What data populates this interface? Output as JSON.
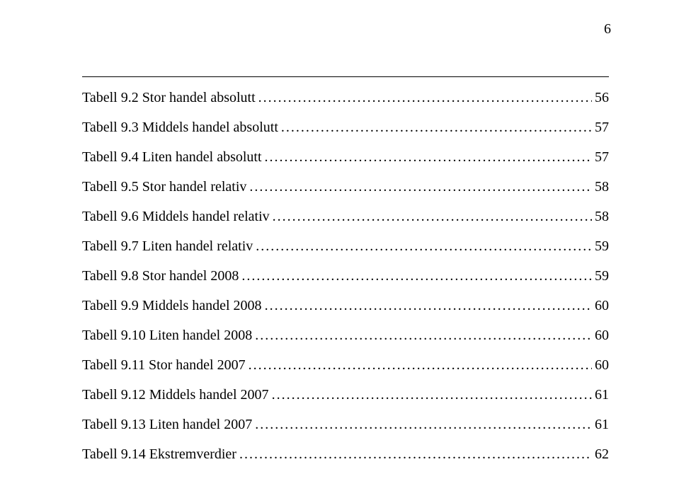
{
  "page_number": "6",
  "toc": [
    {
      "label": "Tabell 9.2 Stor handel absolutt",
      "page": "56"
    },
    {
      "label": "Tabell 9.3 Middels handel absolutt",
      "page": "57"
    },
    {
      "label": "Tabell 9.4 Liten handel absolutt",
      "page": "57"
    },
    {
      "label": "Tabell 9.5 Stor handel relativ",
      "page": "58"
    },
    {
      "label": "Tabell 9.6 Middels handel relativ",
      "page": "58"
    },
    {
      "label": "Tabell 9.7 Liten handel relativ",
      "page": "59"
    },
    {
      "label": "Tabell 9.8 Stor handel 2008",
      "page": "59"
    },
    {
      "label": "Tabell 9.9 Middels handel 2008",
      "page": "60"
    },
    {
      "label": "Tabell 9.10 Liten handel 2008",
      "page": "60"
    },
    {
      "label": "Tabell 9.11 Stor handel 2007",
      "page": "60"
    },
    {
      "label": "Tabell 9.12 Middels handel 2007",
      "page": "61"
    },
    {
      "label": "Tabell 9.13 Liten handel 2007",
      "page": "61"
    },
    {
      "label": "Tabell 9.14 Ekstremverdier",
      "page": "62"
    }
  ]
}
